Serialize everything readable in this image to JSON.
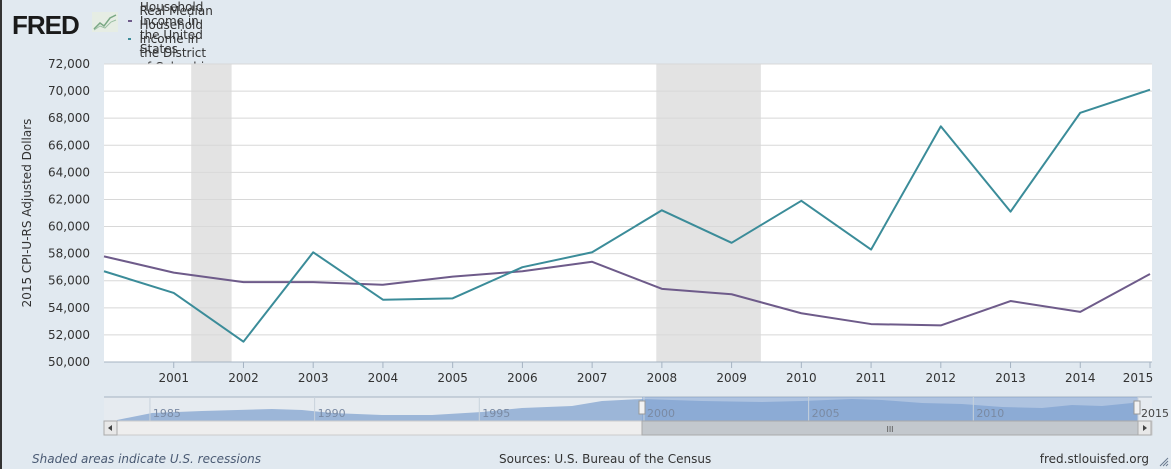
{
  "logo": {
    "text": "FRED",
    "icon": "line-chart-icon"
  },
  "legend": [
    {
      "label": "Real Median Household Income in the United States",
      "color": "#6e5b8a"
    },
    {
      "label": "Real Median Household Income in the District of Columbia",
      "color": "#3b8c99"
    }
  ],
  "footer": {
    "left": "Shaded areas indicate U.S. recessions",
    "center": "Sources: U.S. Bureau of the Census",
    "right": "fred.stlouisfed.org"
  },
  "navigator": {
    "labels": [
      "1985",
      "1990",
      "1995",
      "2000",
      "2005",
      "2010",
      "2015"
    ],
    "selected_range": [
      2000,
      2015
    ],
    "scroll_left_icon": "arrow-left-icon",
    "scroll_right_icon": "arrow-right-icon",
    "scroll_grip": "III"
  },
  "chart_data": {
    "type": "line",
    "title": "",
    "xlabel": "",
    "ylabel": "2015 CPI-U-RS Adjusted Dollars",
    "x": [
      2000,
      2001,
      2002,
      2003,
      2004,
      2005,
      2006,
      2007,
      2008,
      2009,
      2010,
      2011,
      2012,
      2013,
      2014,
      2015
    ],
    "xticks": [
      "2001",
      "2002",
      "2003",
      "2004",
      "2005",
      "2006",
      "2007",
      "2008",
      "2009",
      "2010",
      "2011",
      "2012",
      "2013",
      "2014",
      "2015"
    ],
    "xlim": [
      2000,
      2015
    ],
    "ylim": [
      50000,
      72000
    ],
    "yticks": [
      "50,000",
      "52,000",
      "54,000",
      "56,000",
      "58,000",
      "60,000",
      "62,000",
      "64,000",
      "66,000",
      "68,000",
      "70,000",
      "72,000"
    ],
    "grid": true,
    "legend_position": "top-left",
    "recessions": [
      [
        2001.25,
        2001.83
      ],
      [
        2007.92,
        2009.42
      ]
    ],
    "series": [
      {
        "name": "Real Median Household Income in the United States",
        "color": "#6e5b8a",
        "values": [
          57800,
          56600,
          55900,
          55900,
          55700,
          56300,
          56700,
          57400,
          55400,
          55000,
          53600,
          52800,
          52700,
          54500,
          53700,
          56500
        ]
      },
      {
        "name": "Real Median Household Income in the District of Columbia",
        "color": "#3b8c99",
        "values": [
          56700,
          55100,
          51500,
          58100,
          54600,
          54700,
          57000,
          58100,
          61200,
          58800,
          61900,
          58300,
          67400,
          61100,
          68400,
          70100
        ]
      }
    ]
  }
}
